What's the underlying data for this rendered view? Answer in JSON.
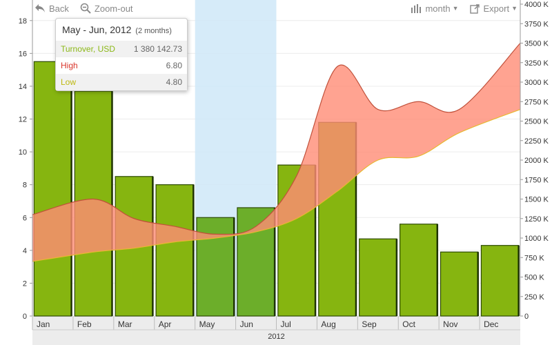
{
  "toolbar": {
    "back_label": "Back",
    "zoom_out_label": "Zoom-out",
    "period_label": "month",
    "export_label": "Export"
  },
  "tooltip": {
    "title": "May - Jun, 2012",
    "subtitle": "(2 months)",
    "rows": [
      {
        "label": "Turnover, USD",
        "value": "1 380 142.73",
        "color": "#8cb818"
      },
      {
        "label": "High",
        "value": "6.80",
        "color": "#d9352b"
      },
      {
        "label": "Low",
        "value": "4.80",
        "color": "#bdb80e"
      }
    ]
  },
  "chart_data": {
    "type": "bar",
    "categories": [
      "Jan",
      "Feb",
      "Mar",
      "Apr",
      "May",
      "Jun",
      "Jul",
      "Aug",
      "Sep",
      "Oct",
      "Nov",
      "Dec"
    ],
    "xlabel": "2012",
    "selected_range": [
      "May",
      "Jun"
    ],
    "series": [
      {
        "name": "Turnover, USD",
        "type": "bar",
        "axis": "left",
        "values": [
          15.5,
          13.7,
          8.5,
          8.0,
          6.0,
          6.6,
          9.2,
          11.8,
          4.7,
          5.6,
          3.9,
          4.3
        ],
        "color": "#86b510"
      },
      {
        "name": "High",
        "type": "area-range-top",
        "axis": "right",
        "color": "#ff8c75",
        "values": [
          1300,
          1500,
          1250,
          1150,
          1050,
          1150,
          1800,
          3200,
          2650,
          2750,
          2650,
          3500
        ]
      },
      {
        "name": "Low",
        "type": "area-range-bottom",
        "axis": "right",
        "color": "#e8b830",
        "values": [
          700,
          820,
          870,
          950,
          1000,
          1080,
          1250,
          1600,
          2000,
          2050,
          2350,
          2650
        ]
      }
    ],
    "y_left": {
      "min": 0,
      "max": 19,
      "ticks": [
        0,
        2,
        4,
        6,
        8,
        10,
        12,
        14,
        16,
        18
      ]
    },
    "y_right": {
      "min": 0,
      "max": 4000,
      "step": 250,
      "tick_labels": [
        "0",
        "250 K",
        "500 K",
        "750 K",
        "1000 K",
        "1250 K",
        "1500 K",
        "1750 K",
        "2000 K",
        "2250 K",
        "2500 K",
        "2750 K",
        "3000 K",
        "3250 K",
        "3500 K",
        "3750 K",
        "4000 K"
      ]
    },
    "grid": true
  }
}
